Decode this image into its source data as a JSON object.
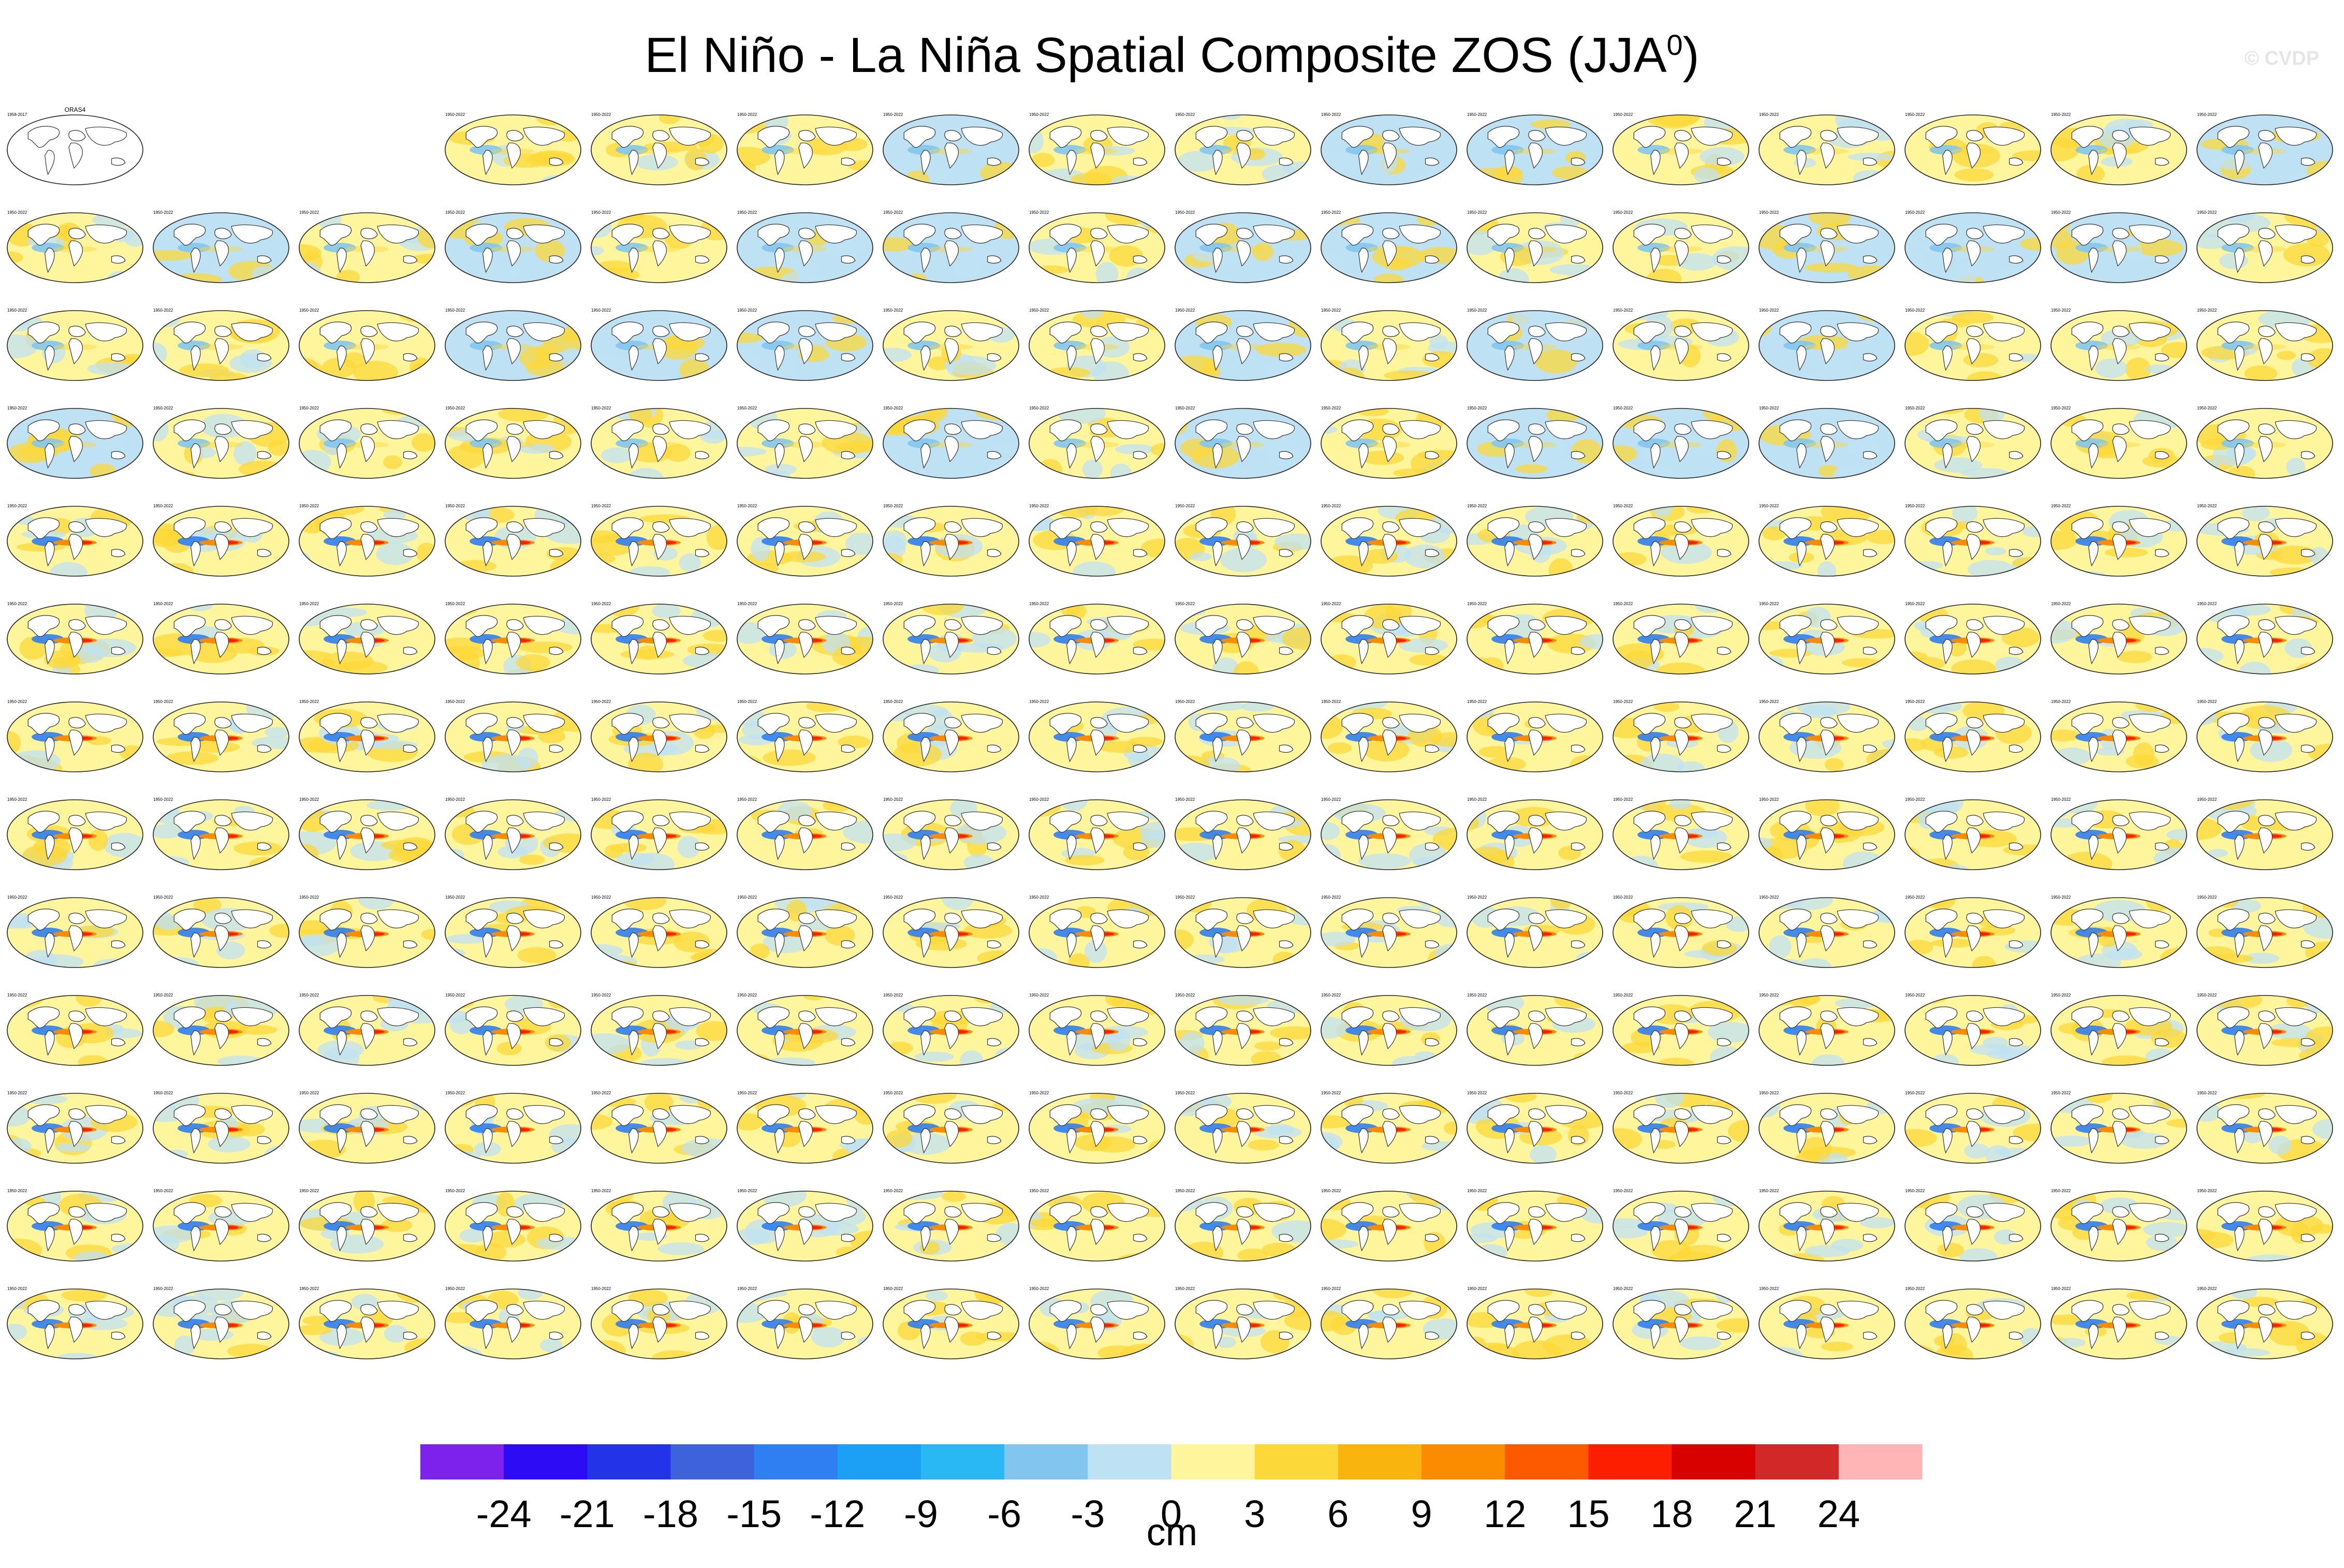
{
  "title": {
    "main": "El Niño - La Niña Spatial Composite ZOS (JJA",
    "superscript": "0",
    "close": ")"
  },
  "watermark": "© CVDP",
  "chart_data": {
    "type": "heatmap",
    "title": "El Niño - La Niña Spatial Composite ZOS (JJA0)",
    "grid": {
      "rows": 13,
      "columns": 16,
      "panel_count": 206,
      "first_row_blank_columns": [
        1,
        2
      ]
    },
    "observation_panel": {
      "label": "ORAS4",
      "period": "1958-2017"
    },
    "model_period": "1950-2022",
    "colorbar": {
      "units": "cm",
      "tick_labels": [
        "-24",
        "-21",
        "-18",
        "-15",
        "-12",
        "-9",
        "-6",
        "-3",
        "0",
        "3",
        "6",
        "9",
        "12",
        "15",
        "18",
        "21",
        "24"
      ],
      "colors": [
        "#7d22ec",
        "#2d0cf5",
        "#2233e8",
        "#3d62dc",
        "#2f7ff3",
        "#1ba0f5",
        "#2ab8f4",
        "#82c6ef",
        "#bfe1f4",
        "#fff59d",
        "#fcd838",
        "#fab40e",
        "#fb8c00",
        "#fd5a00",
        "#fd1e00",
        "#d90000",
        "#d32828",
        "#ffb5b5"
      ]
    }
  }
}
